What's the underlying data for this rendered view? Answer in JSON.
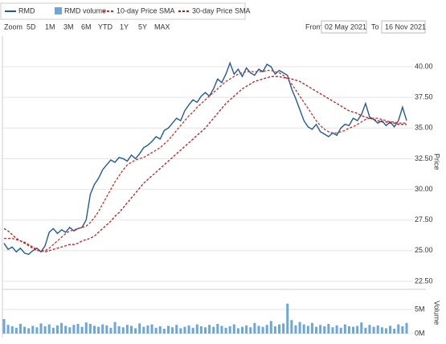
{
  "toolbar": {
    "zoom_label": "Zoom",
    "zoom_buttons": [
      "5D",
      "1M",
      "3M",
      "6M",
      "YTD",
      "1Y",
      "5Y",
      "MAX"
    ],
    "from_label": "From",
    "from_date": "02 May 2021",
    "to_label": "To",
    "to_date": "16 Nov 2021"
  },
  "chart_data": [
    {
      "type": "line",
      "y_label": "Price",
      "ylim": [
        22.5,
        42
      ],
      "grid": true,
      "yticks": [
        {
          "value": 22.5,
          "label": "22.50"
        },
        {
          "value": 25,
          "label": "25.00"
        },
        {
          "value": 27.5,
          "label": "27.50"
        },
        {
          "value": 30,
          "label": "30.00"
        },
        {
          "value": 32.5,
          "label": "32.50"
        },
        {
          "value": 35,
          "label": "35.00"
        },
        {
          "value": 37.5,
          "label": "37.50"
        },
        {
          "value": 40,
          "label": "40.00"
        }
      ],
      "series": [
        {
          "name": "RMD",
          "color": "#1f5a9e",
          "dashed": false,
          "values": [
            25.6,
            25.1,
            25.3,
            24.9,
            25.2,
            24.8,
            24.7,
            25.0,
            25.2,
            24.9,
            25.4,
            26.5,
            26.8,
            26.4,
            26.7,
            26.5,
            26.9,
            26.6,
            26.8,
            26.9,
            27.5,
            29.6,
            30.4,
            30.9,
            31.6,
            32.0,
            32.4,
            32.2,
            32.6,
            32.5,
            32.3,
            32.8,
            32.5,
            32.9,
            33.4,
            33.6,
            33.9,
            34.3,
            34.1,
            34.8,
            35.0,
            35.4,
            35.8,
            35.6,
            36.4,
            36.9,
            37.3,
            37.1,
            37.6,
            37.9,
            37.6,
            38.2,
            39.0,
            38.7,
            39.4,
            40.3,
            39.4,
            39.8,
            39.2,
            39.9,
            39.5,
            39.3,
            39.8,
            39.6,
            40.2,
            40.0,
            39.4,
            39.7,
            39.5,
            39.3,
            38.2,
            37.4,
            36.5,
            35.6,
            35.1,
            34.9,
            35.3,
            34.7,
            34.5,
            34.3,
            34.6,
            34.4,
            35.0,
            35.3,
            35.2,
            35.8,
            35.6,
            36.1,
            37.0,
            35.9,
            35.7,
            35.4,
            35.6,
            35.2,
            35.5,
            35.1,
            35.6,
            36.7,
            35.6
          ]
        },
        {
          "name": "10-day Price SMA",
          "color": "#d42a2a",
          "dashed": true,
          "values": [
            26.0,
            26.0,
            26.0,
            25.9,
            25.8,
            25.7,
            25.5,
            25.3,
            25.1,
            25.0,
            25.0,
            25.2,
            25.5,
            25.8,
            26.1,
            26.4,
            26.6,
            26.7,
            26.8,
            26.9,
            27.0,
            27.3,
            27.7,
            28.2,
            28.8,
            29.4,
            30.0,
            30.6,
            31.1,
            31.6,
            32.0,
            32.2,
            32.4,
            32.5,
            32.6,
            32.8,
            33.0,
            33.2,
            33.4,
            33.7,
            34.0,
            34.4,
            34.8,
            35.2,
            35.6,
            36.0,
            36.3,
            36.7,
            37.0,
            37.3,
            37.6,
            37.9,
            38.2,
            38.5,
            38.8,
            39.0,
            39.2,
            39.4,
            39.5,
            39.6,
            39.6,
            39.6,
            39.6,
            39.6,
            39.7,
            39.7,
            39.6,
            39.5,
            39.3,
            39.0,
            38.6,
            38.1,
            37.6,
            37.1,
            36.6,
            36.1,
            35.6,
            35.2,
            34.9,
            34.7,
            34.6,
            34.6,
            34.7,
            34.8,
            35.0,
            35.1,
            35.3,
            35.5,
            35.7,
            35.8,
            35.8,
            35.8,
            35.7,
            35.6,
            35.5,
            35.5,
            35.4,
            35.4,
            35.4
          ]
        },
        {
          "name": "30-day Price SMA",
          "color": "#c0181d",
          "dashed": true,
          "values": [
            26.8,
            26.6,
            26.3,
            26.0,
            25.8,
            25.6,
            25.4,
            25.2,
            25.0,
            25.0,
            24.9,
            25.0,
            25.1,
            25.2,
            25.3,
            25.4,
            25.5,
            25.5,
            25.6,
            25.8,
            25.9,
            26.0,
            26.2,
            26.5,
            26.8,
            27.1,
            27.4,
            27.8,
            28.1,
            28.5,
            28.9,
            29.3,
            29.7,
            30.1,
            30.5,
            30.8,
            31.1,
            31.4,
            31.7,
            32.0,
            32.3,
            32.6,
            32.9,
            33.2,
            33.5,
            33.8,
            34.1,
            34.4,
            34.7,
            35.0,
            35.4,
            35.8,
            36.2,
            36.6,
            37.0,
            37.3,
            37.6,
            37.9,
            38.2,
            38.4,
            38.6,
            38.8,
            38.9,
            39.0,
            39.1,
            39.2,
            39.2,
            39.2,
            39.1,
            39.1,
            39.0,
            38.9,
            38.8,
            38.6,
            38.4,
            38.2,
            38.0,
            37.8,
            37.6,
            37.4,
            37.2,
            37.0,
            36.8,
            36.6,
            36.4,
            36.3,
            36.2,
            36.0,
            35.9,
            35.8,
            35.7,
            35.6,
            35.5,
            35.5,
            35.4,
            35.4,
            35.3,
            35.3,
            35.3
          ]
        }
      ]
    },
    {
      "type": "bar",
      "y_label": "Volume",
      "ylim": [
        0,
        8600000
      ],
      "grid": true,
      "yticks": [
        {
          "value": 0,
          "label": "0M"
        },
        {
          "value": 5000000,
          "label": "5M"
        }
      ],
      "series": [
        {
          "name": "RMD volume",
          "color": "#6ea6dc",
          "values": [
            3000000,
            1800000,
            1500000,
            1200000,
            2000000,
            1400000,
            1100000,
            1600000,
            1300000,
            2100000,
            1500000,
            1900000,
            1200000,
            1700000,
            2200000,
            1600000,
            1300000,
            1800000,
            2000000,
            1400000,
            2300000,
            2000000,
            1600000,
            1400000,
            1900000,
            1700000,
            1200000,
            2400000,
            1500000,
            1300000,
            1800000,
            1600000,
            1100000,
            2100000,
            1400000,
            1700000,
            1900000,
            1200000,
            1500000,
            1000000,
            1600000,
            1300000,
            1800000,
            1100000,
            1400000,
            1700000,
            1200000,
            1900000,
            1500000,
            1300000,
            1800000,
            1400000,
            2000000,
            1600000,
            1200000,
            1500000,
            1900000,
            1100000,
            1400000,
            1700000,
            1300000,
            2200000,
            1600000,
            1400000,
            1800000,
            2600000,
            1500000,
            1900000,
            2100000,
            6200000,
            2800000,
            1700000,
            2400000,
            1900000,
            1600000,
            2200000,
            1400000,
            1800000,
            1500000,
            2000000,
            1300000,
            1700000,
            1200000,
            1900000,
            1500000,
            1400000,
            1600000,
            2300000,
            1200000,
            1800000,
            1400000,
            1700000,
            1300000,
            1100000,
            1600000,
            1000000,
            1900000,
            1500000,
            2200000
          ]
        }
      ]
    }
  ]
}
